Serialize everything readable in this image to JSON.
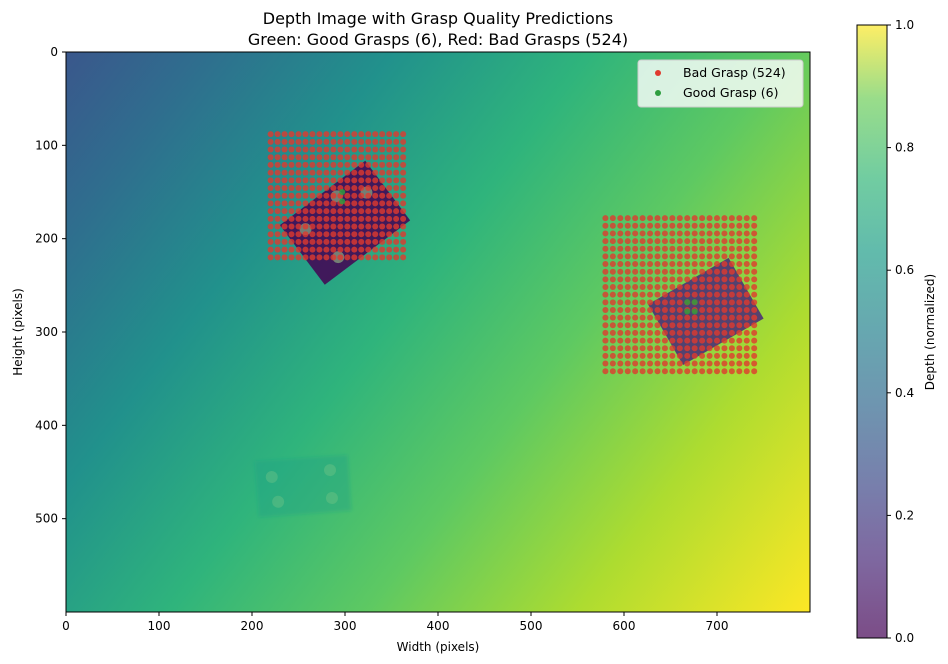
{
  "chart_data": {
    "type": "heatmap",
    "title": "Depth Image with Grasp Quality Predictions",
    "subtitle": "Green: Good Grasps (6), Red: Bad Grasps (524)",
    "xlabel": "Width (pixels)",
    "ylabel": "Height (pixels)",
    "xlim": [
      0,
      800
    ],
    "ylim": [
      600,
      0
    ],
    "x_ticks": [
      0,
      100,
      200,
      300,
      400,
      500,
      600,
      700
    ],
    "y_ticks": [
      0,
      100,
      200,
      300,
      400,
      500
    ],
    "colorbar": {
      "label": "Depth (normalized)",
      "range": [
        0,
        1
      ],
      "ticks": [
        0.0,
        0.2,
        0.4,
        0.6,
        0.8,
        1.0
      ],
      "tick_labels": [
        "0.0",
        "0.2",
        "0.4",
        "0.6",
        "0.8",
        "1.0"
      ],
      "colormap": "viridis"
    },
    "legend": {
      "placement": "top-right",
      "entries": [
        {
          "label": "Bad Grasp (524)",
          "color": "#e03a2e"
        },
        {
          "label": "Good Grasp (6)",
          "color": "#2e9e3f"
        }
      ]
    },
    "series": [
      {
        "name": "Bad Grasp (524)",
        "color": "#e03a2e",
        "grids": [
          {
            "x_start": 220,
            "x_end": 367.5,
            "x_step": 7.5,
            "y_start": 88,
            "y_end": 220,
            "y_step": 8.25
          },
          {
            "x_start": 580,
            "x_end": 740,
            "x_step": 8,
            "y_start": 178,
            "y_end": 350,
            "y_step": 8.2
          }
        ]
      },
      {
        "name": "Good Grasp (6)",
        "color": "#2e9e3f",
        "points": [
          [
            297,
            150
          ],
          [
            297,
            160
          ],
          [
            668,
            268
          ],
          [
            676,
            268
          ],
          [
            668,
            278
          ],
          [
            676,
            278
          ]
        ]
      }
    ],
    "objects": [
      {
        "kind": "rectangle",
        "center": [
          300,
          183
        ],
        "size": [
          115,
          80
        ],
        "angle_deg": -37,
        "depth": 0.0,
        "holes": [
          [
            -38,
            -20
          ],
          [
            10,
            -28
          ],
          [
            38,
            -12
          ],
          [
            -28,
            25
          ]
        ]
      },
      {
        "kind": "rectangle",
        "center": [
          688,
          278
        ],
        "size": [
          100,
          75
        ],
        "angle_deg": -30,
        "depth": 0.1
      },
      {
        "kind": "rectangle",
        "center": [
          255,
          465
        ],
        "size": [
          100,
          60
        ],
        "angle_deg": -4,
        "depth": 0.55,
        "holes": [
          [
            -33,
            -12
          ],
          [
            30,
            -15
          ],
          [
            -28,
            15
          ],
          [
            30,
            15
          ]
        ]
      }
    ]
  }
}
